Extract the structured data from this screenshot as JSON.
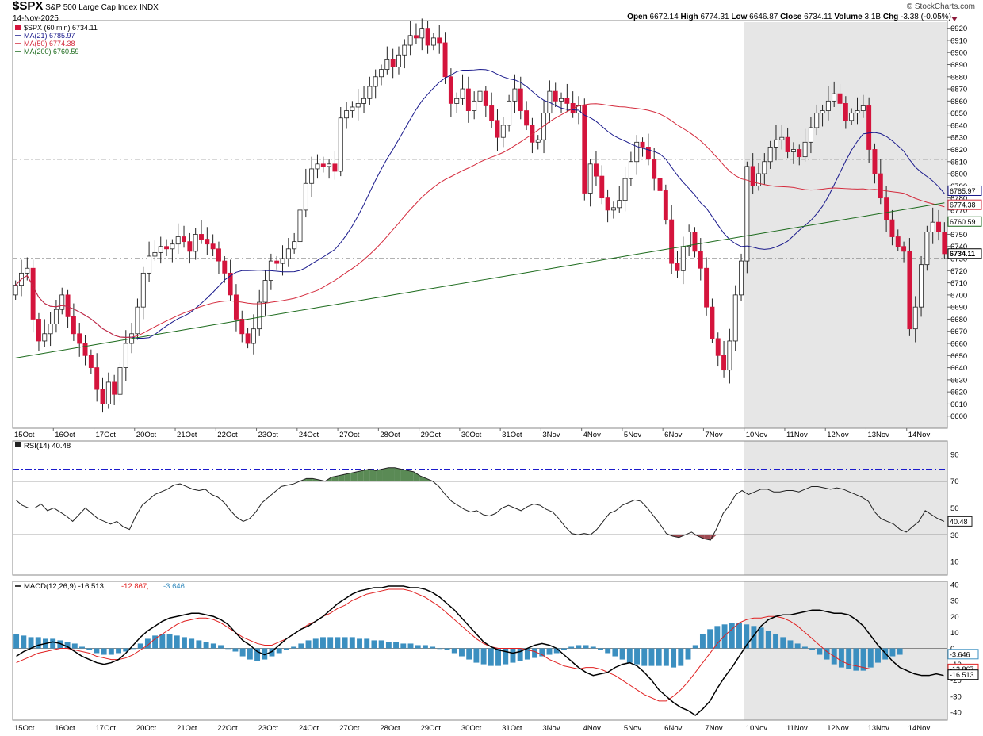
{
  "header": {
    "symbol": "$SPX",
    "name": "S&P 500 Large Cap Index",
    "exchange": "INDX",
    "date": "14-Nov-2025",
    "watermark": "© StockCharts.com",
    "open_label": "Open",
    "open": "6672.14",
    "high_label": "High",
    "high": "6774.31",
    "low_label": "Low",
    "low": "6646.87",
    "close_label": "Close",
    "close": "6734.11",
    "volume_label": "Volume",
    "volume": "3.1B",
    "chg_label": "Chg",
    "chg": "-3.38 (-0.05%)"
  },
  "colors": {
    "up": "#ffffff",
    "down": "#d4143c",
    "wick": "#000000",
    "ma21": "#1a1a8c",
    "ma50": "#d42a3c",
    "ma200": "#1d6b1d",
    "highlight": "#e6e6e6",
    "macd_line": "#000000",
    "signal_line": "#e02020",
    "hist": "#3b8fc0",
    "rsi_over": "#5a8a55",
    "rsi_under": "#9e4a52",
    "rsi_ref": "#1a1acc"
  },
  "chart_data": [
    {
      "type": "candlestick",
      "title": "$SPX (60 min) 6734.11",
      "interval": "60 min",
      "legend": [
        {
          "label": "$SPX (60 min) 6734.11"
        },
        {
          "label": "MA(21) 6785.97",
          "color": "#1a1a8c"
        },
        {
          "label": "MA(50) 6774.38",
          "color": "#d42a3c"
        },
        {
          "label": "MA(200) 6760.59",
          "color": "#1d6b1d"
        }
      ],
      "ylim": [
        6590,
        6925
      ],
      "y_ticks": [
        6600,
        6610,
        6620,
        6630,
        6640,
        6650,
        6660,
        6670,
        6680,
        6690,
        6700,
        6710,
        6720,
        6730,
        6740,
        6750,
        6760,
        6770,
        6780,
        6790,
        6800,
        6810,
        6820,
        6830,
        6840,
        6850,
        6860,
        6870,
        6880,
        6890,
        6900,
        6910,
        6920
      ],
      "x_labels": [
        "15Oct",
        "16Oct",
        "17Oct",
        "20Oct",
        "21Oct",
        "22Oct",
        "23Oct",
        "24Oct",
        "27Oct",
        "28Oct",
        "29Oct",
        "30Oct",
        "31Oct",
        "3Nov",
        "4Nov",
        "5Nov",
        "6Nov",
        "7Nov",
        "10Nov",
        "11Nov",
        "12Nov",
        "13Nov",
        "14Nov"
      ],
      "ref_lines": [
        6812,
        6730
      ],
      "highlight_from_session": 18,
      "price_tags": [
        {
          "value": 6785.97,
          "label": "6785.97"
        },
        {
          "value": 6774.38,
          "label": "6774.38"
        },
        {
          "value": 6760.59,
          "label": "6760.59"
        },
        {
          "value": 6734.11,
          "label": "6734.11"
        }
      ],
      "sessions": [
        {
          "label": "15Oct",
          "closes": [
            6708,
            6718,
            6722,
            6680,
            6662,
            6668,
            6676
          ]
        },
        {
          "label": "16Oct",
          "closes": [
            6688,
            6700,
            6682,
            6668,
            6660,
            6650,
            6640
          ]
        },
        {
          "label": "17Oct",
          "closes": [
            6622,
            6610,
            6628,
            6618,
            6640,
            6660,
            6668
          ]
        },
        {
          "label": "20Oct",
          "closes": [
            6690,
            6718,
            6732,
            6735,
            6740,
            6738,
            6742
          ]
        },
        {
          "label": "21Oct",
          "closes": [
            6748,
            6744,
            6736,
            6750,
            6746,
            6742,
            6738
          ]
        },
        {
          "label": "22Oct",
          "closes": [
            6728,
            6718,
            6700,
            6680,
            6668,
            6660,
            6672
          ]
        },
        {
          "label": "23Oct",
          "closes": [
            6694,
            6712,
            6728,
            6726,
            6730,
            6738,
            6744
          ]
        },
        {
          "label": "24Oct",
          "closes": [
            6770,
            6792,
            6804,
            6808,
            6806,
            6808,
            6802
          ]
        },
        {
          "label": "27Oct",
          "closes": [
            6846,
            6852,
            6855,
            6858,
            6862,
            6872,
            6880
          ]
        },
        {
          "label": "28Oct",
          "closes": [
            6886,
            6894,
            6888,
            6898,
            6906,
            6914,
            6912
          ]
        },
        {
          "label": "29Oct",
          "closes": [
            6920,
            6906,
            6912,
            6908,
            6880,
            6858,
            6862
          ]
        },
        {
          "label": "30Oct",
          "closes": [
            6870,
            6852,
            6860,
            6868,
            6856,
            6844,
            6830
          ]
        },
        {
          "label": "31Oct",
          "closes": [
            6840,
            6860,
            6870,
            6852,
            6840,
            6826,
            6828
          ]
        },
        {
          "label": "3Nov",
          "closes": [
            6850,
            6868,
            6860,
            6862,
            6858,
            6850,
            6856
          ]
        },
        {
          "label": "4Nov",
          "closes": [
            6784,
            6808,
            6798,
            6780,
            6770,
            6772,
            6778
          ]
        },
        {
          "label": "5Nov",
          "closes": [
            6796,
            6810,
            6826,
            6822,
            6812,
            6796,
            6786
          ]
        },
        {
          "label": "6Nov",
          "closes": [
            6762,
            6726,
            6720,
            6740,
            6752,
            6736,
            6722
          ]
        },
        {
          "label": "7Nov",
          "closes": [
            6690,
            6664,
            6650,
            6638,
            6662,
            6700,
            6728
          ]
        },
        {
          "label": "10Nov",
          "closes": [
            6806,
            6790,
            6800,
            6810,
            6822,
            6828,
            6830
          ]
        },
        {
          "label": "11Nov",
          "closes": [
            6818,
            6820,
            6814,
            6826,
            6838,
            6850,
            6852
          ]
        },
        {
          "label": "12Nov",
          "closes": [
            6860,
            6866,
            6858,
            6844,
            6850,
            6852,
            6856
          ]
        },
        {
          "label": "13Nov",
          "closes": [
            6820,
            6800,
            6780,
            6762,
            6748,
            6740,
            6736
          ]
        },
        {
          "label": "14Nov",
          "closes": [
            6672,
            6690,
            6725,
            6752,
            6760,
            6752,
            6734
          ]
        }
      ]
    },
    {
      "type": "line",
      "title": "RSI(14) 40.48",
      "ylim": [
        0,
        100
      ],
      "y_ticks": [
        10,
        30,
        50,
        70,
        90
      ],
      "levels": [
        30,
        50,
        70
      ],
      "ref_line": 79,
      "tag": "40.48",
      "values": [
        56,
        52,
        50,
        50,
        53,
        48,
        50,
        47,
        44,
        40,
        45,
        50,
        46,
        42,
        40,
        38,
        40,
        36,
        34,
        44,
        52,
        56,
        60,
        62,
        64,
        67,
        68,
        66,
        64,
        63,
        64,
        60,
        58,
        54,
        48,
        43,
        40,
        42,
        47,
        54,
        58,
        62,
        66,
        67,
        68,
        70,
        72,
        72,
        71,
        70,
        73,
        74,
        75,
        76,
        77,
        78,
        79,
        78,
        79,
        80,
        80,
        79,
        78,
        77,
        74,
        72,
        70,
        66,
        60,
        55,
        52,
        49,
        47,
        48,
        45,
        44,
        46,
        50,
        52,
        50,
        48,
        51,
        53,
        52,
        49,
        47,
        42,
        36,
        31,
        30,
        31,
        30,
        34,
        40,
        46,
        48,
        52,
        54,
        56,
        55,
        50,
        44,
        38,
        31,
        29,
        28,
        30,
        32,
        29,
        27,
        26,
        35,
        46,
        52,
        60,
        63,
        60,
        62,
        64,
        64,
        62,
        62,
        63,
        63,
        62,
        64,
        66,
        66,
        65,
        64,
        65,
        64,
        62,
        60,
        58,
        55,
        47,
        42,
        40,
        38,
        34,
        32,
        36,
        40,
        48,
        45,
        42,
        40
      ]
    },
    {
      "type": "line",
      "title": "MACD(12,26,9) -16.513, -12.867, -3.646",
      "legend": [
        {
          "label": "MACD(12,26,9) -16.513",
          "color": "#000000"
        },
        {
          "label": "-12.867",
          "color": "#e02020"
        },
        {
          "label": "-3.646",
          "color": "#3b8fc0"
        }
      ],
      "ylim": [
        -45,
        42
      ],
      "y_ticks": [
        -40,
        -30,
        -20,
        -10,
        0,
        10,
        20,
        30,
        40
      ],
      "tags": [
        {
          "value": -3.646,
          "label": "-3.646"
        },
        {
          "value": -12.867,
          "label": "-12.867"
        },
        {
          "value": -16.513,
          "label": "-16.513"
        }
      ],
      "series": [
        {
          "name": "MACD",
          "values": [
            -5,
            -2,
            0,
            2,
            3,
            4,
            3,
            1,
            -2,
            -5,
            -7,
            -9,
            -10,
            -9,
            -7,
            -3,
            2,
            7,
            11,
            14,
            17,
            19,
            20,
            21,
            22,
            22,
            21,
            20,
            18,
            15,
            10,
            5,
            2,
            -2,
            -4,
            -2,
            2,
            6,
            9,
            12,
            14,
            17,
            20,
            24,
            28,
            31,
            34,
            36,
            37,
            38,
            38,
            39,
            39,
            39,
            38,
            38,
            37,
            35,
            32,
            28,
            24,
            19,
            14,
            9,
            4,
            1,
            -1,
            -2,
            -3,
            -2,
            0,
            2,
            3,
            2,
            0,
            -4,
            -8,
            -12,
            -15,
            -17,
            -16,
            -15,
            -12,
            -10,
            -9,
            -11,
            -15,
            -20,
            -26,
            -30,
            -34,
            -37,
            -39,
            -42,
            -38,
            -33,
            -25,
            -18,
            -12,
            -5,
            2,
            8,
            14,
            18,
            20,
            21,
            21,
            22,
            23,
            24,
            24,
            23,
            22,
            22,
            21,
            18,
            14,
            8,
            2,
            -3,
            -8,
            -12,
            -14,
            -16,
            -17,
            -17,
            -16,
            -17
          ]
        },
        {
          "name": "Signal",
          "values": [
            -9,
            -7,
            -5,
            -3,
            -2,
            -1,
            0,
            0,
            -1,
            -2,
            -3,
            -5,
            -6,
            -7,
            -7,
            -6,
            -4,
            -1,
            2,
            6,
            9,
            12,
            15,
            17,
            18,
            19,
            19,
            18,
            16,
            13,
            10,
            7,
            5,
            3,
            2,
            2,
            4,
            6,
            9,
            12,
            15,
            17,
            20,
            22,
            25,
            27,
            30,
            32,
            34,
            35,
            36,
            37,
            37,
            37,
            36,
            34,
            32,
            29,
            26,
            22,
            18,
            14,
            10,
            6,
            3,
            1,
            0,
            0,
            0,
            0,
            -1,
            -2,
            -4,
            -7,
            -9,
            -11,
            -12,
            -13,
            -12,
            -12,
            -13,
            -15,
            -17,
            -20,
            -23,
            -26,
            -29,
            -31,
            -33,
            -33,
            -30,
            -26,
            -21,
            -15,
            -9,
            -3,
            3,
            8,
            12,
            16,
            18,
            19,
            19,
            20,
            20,
            19,
            17,
            14,
            10,
            6,
            2,
            -2,
            -5,
            -8,
            -10,
            -11,
            -12,
            -13
          ]
        },
        {
          "name": "Histogram",
          "values": [
            9,
            8,
            7,
            7,
            6,
            6,
            5,
            4,
            3,
            1,
            -1,
            -3,
            -4,
            -4,
            -3,
            -2,
            0,
            3,
            6,
            8,
            9,
            9,
            8,
            7,
            6,
            5,
            4,
            3,
            2,
            0,
            -2,
            -5,
            -7,
            -8,
            -7,
            -5,
            -3,
            -1,
            1,
            3,
            5,
            6,
            7,
            7,
            7,
            7,
            7,
            6,
            6,
            5,
            5,
            4,
            4,
            3,
            3,
            2,
            2,
            1,
            0,
            -1,
            -3,
            -5,
            -7,
            -9,
            -10,
            -11,
            -11,
            -10,
            -9,
            -8,
            -7,
            -6,
            -5,
            -4,
            -3,
            -1,
            1,
            2,
            2,
            1,
            -1,
            -3,
            -5,
            -7,
            -9,
            -10,
            -11,
            -11,
            -11,
            -11,
            -12,
            -11,
            -7,
            2,
            9,
            12,
            14,
            15,
            16,
            16,
            15,
            14,
            13,
            11,
            9,
            7,
            5,
            3,
            1,
            -1,
            -4,
            -7,
            -10,
            -12,
            -13,
            -14,
            -14,
            -12,
            -9,
            -7,
            -5,
            -4
          ]
        }
      ]
    }
  ]
}
